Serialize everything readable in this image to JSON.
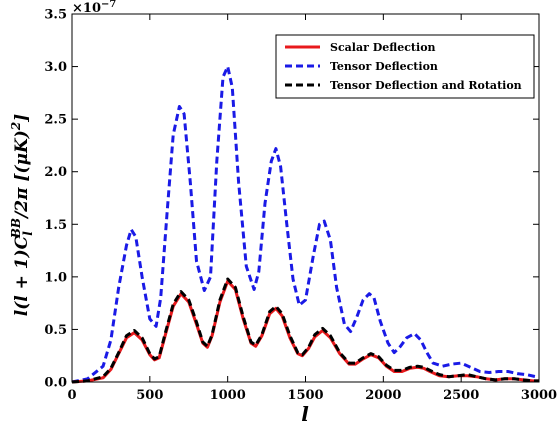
{
  "chart_data": {
    "type": "line",
    "title": "",
    "xlabel": "l",
    "ylabel": "l(l+1)C_l^{BB}/2π [(μK)^2]",
    "ylabel_parts": {
      "main": "l(l + 1)C",
      "sub": "l",
      "sup": "BB",
      "tail": "/2π [(μK)",
      "sq": "2",
      "close": "]"
    },
    "y_multiplier": "×10",
    "y_multiplier_exp": "−7",
    "xlim": [
      0,
      3000
    ],
    "ylim": [
      0.0,
      3.5
    ],
    "x_ticks": [
      0,
      500,
      1000,
      1500,
      2000,
      2500,
      3000
    ],
    "y_ticks": [
      "0.0",
      "0.5",
      "1.0",
      "1.5",
      "2.0",
      "2.5",
      "3.0",
      "3.5"
    ],
    "grid": false,
    "legend_position": "top-right",
    "legend": [
      "Scalar Deflection",
      "Tensor Deflection",
      "Tensor Deflection and Rotation"
    ],
    "series": [
      {
        "name": "Scalar Deflection",
        "color": "#e8191c",
        "style": "solid",
        "x": [
          0,
          100,
          200,
          250,
          300,
          350,
          400,
          450,
          500,
          530,
          560,
          600,
          650,
          700,
          750,
          800,
          840,
          870,
          900,
          950,
          1000,
          1050,
          1100,
          1150,
          1180,
          1220,
          1270,
          1310,
          1350,
          1400,
          1450,
          1480,
          1520,
          1560,
          1610,
          1660,
          1720,
          1780,
          1820,
          1870,
          1920,
          1970,
          2020,
          2070,
          2120,
          2170,
          2220,
          2260,
          2300,
          2360,
          2420,
          2480,
          2540,
          2600,
          2660,
          2720,
          2780,
          2840,
          2900,
          2960,
          3000
        ],
        "y": [
          0.0,
          0.01,
          0.04,
          0.12,
          0.27,
          0.42,
          0.47,
          0.4,
          0.26,
          0.21,
          0.23,
          0.45,
          0.72,
          0.84,
          0.76,
          0.55,
          0.37,
          0.33,
          0.44,
          0.76,
          0.96,
          0.88,
          0.6,
          0.37,
          0.34,
          0.44,
          0.65,
          0.7,
          0.63,
          0.42,
          0.27,
          0.25,
          0.32,
          0.43,
          0.49,
          0.42,
          0.27,
          0.17,
          0.17,
          0.22,
          0.26,
          0.23,
          0.15,
          0.1,
          0.1,
          0.13,
          0.14,
          0.13,
          0.1,
          0.06,
          0.05,
          0.06,
          0.06,
          0.05,
          0.03,
          0.02,
          0.03,
          0.03,
          0.02,
          0.01,
          0.01
        ]
      },
      {
        "name": "Tensor Deflection",
        "color": "#1a1ae6",
        "style": "dashed",
        "x": [
          0,
          100,
          200,
          250,
          300,
          350,
          380,
          410,
          450,
          500,
          540,
          570,
          610,
          650,
          690,
          720,
          760,
          800,
          850,
          890,
          930,
          970,
          1000,
          1030,
          1070,
          1120,
          1170,
          1200,
          1240,
          1280,
          1310,
          1340,
          1380,
          1420,
          1460,
          1500,
          1550,
          1590,
          1620,
          1660,
          1700,
          1750,
          1790,
          1830,
          1870,
          1910,
          1940,
          1980,
          2030,
          2070,
          2110,
          2150,
          2200,
          2240,
          2280,
          2320,
          2380,
          2440,
          2500,
          2560,
          2620,
          2680,
          2740,
          2800,
          2860,
          2920,
          2980,
          3000
        ],
        "y": [
          0.0,
          0.03,
          0.15,
          0.4,
          0.9,
          1.3,
          1.45,
          1.38,
          1.0,
          0.6,
          0.53,
          0.8,
          1.6,
          2.35,
          2.62,
          2.55,
          1.9,
          1.15,
          0.87,
          1.0,
          2.1,
          2.9,
          3.0,
          2.8,
          1.9,
          1.1,
          0.88,
          1.05,
          1.7,
          2.1,
          2.22,
          2.05,
          1.5,
          0.98,
          0.73,
          0.78,
          1.2,
          1.5,
          1.53,
          1.35,
          0.9,
          0.55,
          0.48,
          0.62,
          0.78,
          0.84,
          0.8,
          0.58,
          0.37,
          0.28,
          0.34,
          0.42,
          0.46,
          0.4,
          0.28,
          0.18,
          0.15,
          0.17,
          0.18,
          0.14,
          0.1,
          0.09,
          0.1,
          0.1,
          0.08,
          0.07,
          0.05,
          0.05
        ]
      },
      {
        "name": "Tensor Deflection and Rotation",
        "color": "#000000",
        "style": "dashed",
        "x": [
          0,
          100,
          200,
          250,
          300,
          350,
          400,
          450,
          500,
          530,
          560,
          600,
          650,
          700,
          750,
          800,
          840,
          870,
          900,
          950,
          1000,
          1050,
          1100,
          1150,
          1180,
          1220,
          1270,
          1310,
          1350,
          1400,
          1450,
          1480,
          1520,
          1560,
          1610,
          1660,
          1720,
          1780,
          1820,
          1870,
          1920,
          1970,
          2020,
          2070,
          2120,
          2170,
          2220,
          2260,
          2300,
          2360,
          2420,
          2480,
          2540,
          2600,
          2660,
          2720,
          2780,
          2840,
          2900,
          2960,
          3000
        ],
        "y": [
          0.0,
          0.01,
          0.05,
          0.13,
          0.28,
          0.44,
          0.49,
          0.42,
          0.27,
          0.22,
          0.24,
          0.47,
          0.74,
          0.86,
          0.78,
          0.57,
          0.38,
          0.34,
          0.45,
          0.78,
          0.98,
          0.9,
          0.62,
          0.38,
          0.35,
          0.45,
          0.67,
          0.72,
          0.65,
          0.44,
          0.28,
          0.26,
          0.33,
          0.45,
          0.51,
          0.44,
          0.28,
          0.18,
          0.18,
          0.23,
          0.27,
          0.24,
          0.16,
          0.11,
          0.11,
          0.14,
          0.15,
          0.14,
          0.11,
          0.07,
          0.05,
          0.06,
          0.07,
          0.05,
          0.03,
          0.02,
          0.03,
          0.03,
          0.02,
          0.01,
          0.01
        ]
      }
    ]
  }
}
